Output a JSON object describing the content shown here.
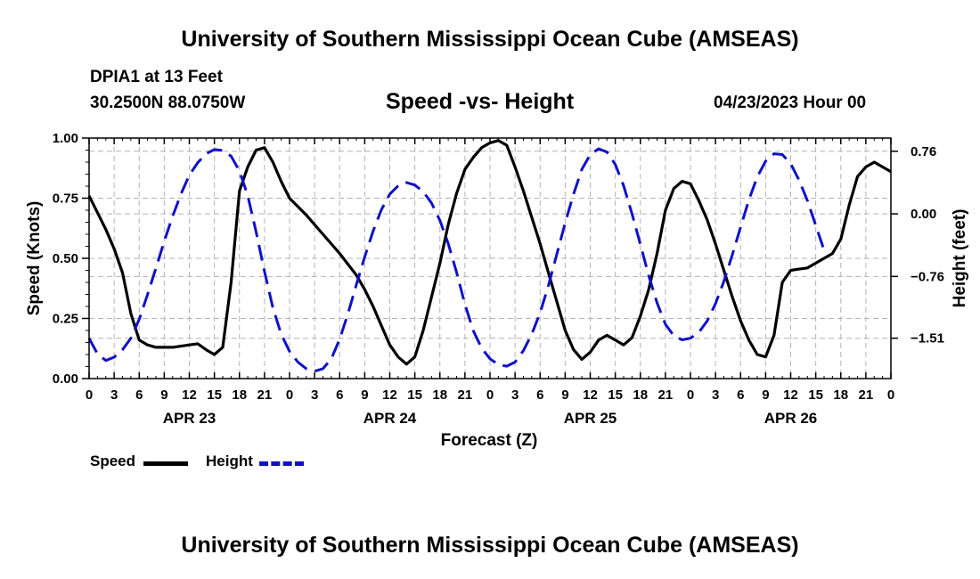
{
  "header": {
    "title": "University of Southern Mississippi Ocean Cube (AMSEAS)",
    "station": "DPIA1 at 13 Feet",
    "coords": "30.2500N  88.0750W",
    "subtitle": "Speed -vs- Height",
    "datetime": "04/23/2023 Hour 00"
  },
  "footer": {
    "title": "University of Southern Mississippi Ocean Cube (AMSEAS)"
  },
  "legend": {
    "speed_label": "Speed",
    "height_label": "Height"
  },
  "colors": {
    "speed": "#000000",
    "height": "#1010c8",
    "grid": "#b4b4b4"
  },
  "chart_data": {
    "type": "line",
    "xlabel": "Forecast (Z)",
    "ylabel": "Speed (Knots)",
    "y2label": "Height (feet)",
    "x_hours_range": [
      0,
      96
    ],
    "x_tick_step_hours": 3,
    "x_tick_labels": [
      "0",
      "3",
      "6",
      "9",
      "12",
      "15",
      "18",
      "21",
      "0",
      "3",
      "6",
      "9",
      "12",
      "15",
      "18",
      "21",
      "0",
      "3",
      "6",
      "9",
      "12",
      "15",
      "18",
      "21",
      "0",
      "3",
      "6",
      "9",
      "12",
      "15",
      "18",
      "21",
      "0"
    ],
    "day_labels": [
      {
        "hour": 12,
        "label": "APR 23"
      },
      {
        "hour": 36,
        "label": "APR 24"
      },
      {
        "hour": 60,
        "label": "APR 25"
      },
      {
        "hour": 84,
        "label": "APR 26"
      }
    ],
    "ylim": [
      0,
      1
    ],
    "y_ticks": [
      0,
      0.25,
      0.5,
      0.75,
      1.0
    ],
    "y_tick_labels": [
      "0.00",
      "0.25",
      "0.50",
      "0.75",
      "1.00"
    ],
    "y2lim": [
      -2.0,
      0.92
    ],
    "y2_ticks": [
      0.76,
      0.0,
      -0.76,
      -1.51
    ],
    "y2_tick_labels": [
      "0.76",
      "0.00",
      "−0.76",
      "−1.51"
    ],
    "series": [
      {
        "name": "Speed",
        "axis": "left",
        "style": "solid",
        "points": [
          [
            0,
            0.76
          ],
          [
            2,
            0.62
          ],
          [
            3,
            0.54
          ],
          [
            4,
            0.44
          ],
          [
            5,
            0.27
          ],
          [
            6,
            0.16
          ],
          [
            7,
            0.14
          ],
          [
            8,
            0.13
          ],
          [
            10,
            0.13
          ],
          [
            12,
            0.14
          ],
          [
            13,
            0.145
          ],
          [
            14,
            0.12
          ],
          [
            15,
            0.1
          ],
          [
            16,
            0.13
          ],
          [
            17,
            0.4
          ],
          [
            18,
            0.78
          ],
          [
            19,
            0.88
          ],
          [
            20,
            0.95
          ],
          [
            21,
            0.96
          ],
          [
            22,
            0.9
          ],
          [
            23,
            0.82
          ],
          [
            24,
            0.75
          ],
          [
            26,
            0.68
          ],
          [
            28,
            0.6
          ],
          [
            30,
            0.52
          ],
          [
            32,
            0.43
          ],
          [
            33,
            0.37
          ],
          [
            34,
            0.3
          ],
          [
            35,
            0.22
          ],
          [
            36,
            0.14
          ],
          [
            37,
            0.09
          ],
          [
            38,
            0.06
          ],
          [
            39,
            0.09
          ],
          [
            40,
            0.2
          ],
          [
            41,
            0.34
          ],
          [
            42,
            0.48
          ],
          [
            43,
            0.64
          ],
          [
            44,
            0.77
          ],
          [
            45,
            0.87
          ],
          [
            46,
            0.92
          ],
          [
            47,
            0.96
          ],
          [
            48,
            0.98
          ],
          [
            49,
            0.99
          ],
          [
            50,
            0.97
          ],
          [
            51,
            0.88
          ],
          [
            52,
            0.78
          ],
          [
            53,
            0.67
          ],
          [
            54,
            0.56
          ],
          [
            55,
            0.44
          ],
          [
            56,
            0.32
          ],
          [
            57,
            0.2
          ],
          [
            58,
            0.12
          ],
          [
            59,
            0.08
          ],
          [
            60,
            0.11
          ],
          [
            61,
            0.16
          ],
          [
            62,
            0.18
          ],
          [
            63,
            0.16
          ],
          [
            64,
            0.14
          ],
          [
            65,
            0.17
          ],
          [
            66,
            0.26
          ],
          [
            67,
            0.37
          ],
          [
            68,
            0.52
          ],
          [
            69,
            0.7
          ],
          [
            70,
            0.79
          ],
          [
            71,
            0.82
          ],
          [
            72,
            0.81
          ],
          [
            73,
            0.74
          ],
          [
            74,
            0.66
          ],
          [
            75,
            0.56
          ],
          [
            76,
            0.45
          ],
          [
            77,
            0.34
          ],
          [
            78,
            0.24
          ],
          [
            79,
            0.16
          ],
          [
            80,
            0.1
          ],
          [
            81,
            0.09
          ],
          [
            82,
            0.18
          ],
          [
            83,
            0.4
          ],
          [
            84,
            0.45
          ],
          [
            85,
            0.455
          ],
          [
            86,
            0.46
          ],
          [
            87,
            0.48
          ],
          [
            88,
            0.5
          ],
          [
            89,
            0.52
          ],
          [
            90,
            0.58
          ],
          [
            91,
            0.72
          ],
          [
            92,
            0.84
          ],
          [
            93,
            0.88
          ],
          [
            94,
            0.9
          ],
          [
            95,
            0.88
          ],
          [
            96,
            0.86
          ]
        ]
      },
      {
        "name": "Height",
        "axis": "right",
        "style": "dashed",
        "points": [
          [
            0,
            -1.51
          ],
          [
            1,
            -1.7
          ],
          [
            2,
            -1.78
          ],
          [
            3,
            -1.74
          ],
          [
            4,
            -1.65
          ],
          [
            5,
            -1.51
          ],
          [
            6,
            -1.28
          ],
          [
            7,
            -0.98
          ],
          [
            8,
            -0.66
          ],
          [
            9,
            -0.33
          ],
          [
            10,
            -0.03
          ],
          [
            11,
            0.24
          ],
          [
            12,
            0.47
          ],
          [
            13,
            0.62
          ],
          [
            14,
            0.73
          ],
          [
            15,
            0.78
          ],
          [
            16,
            0.77
          ],
          [
            17,
            0.7
          ],
          [
            18,
            0.52
          ],
          [
            19,
            0.22
          ],
          [
            20,
            -0.22
          ],
          [
            21,
            -0.7
          ],
          [
            22,
            -1.14
          ],
          [
            23,
            -1.46
          ],
          [
            24,
            -1.67
          ],
          [
            25,
            -1.8
          ],
          [
            26,
            -1.88
          ],
          [
            27,
            -1.91
          ],
          [
            28,
            -1.88
          ],
          [
            29,
            -1.76
          ],
          [
            30,
            -1.52
          ],
          [
            31,
            -1.21
          ],
          [
            32,
            -0.86
          ],
          [
            33,
            -0.52
          ],
          [
            34,
            -0.21
          ],
          [
            35,
            0.05
          ],
          [
            36,
            0.24
          ],
          [
            37,
            0.34
          ],
          [
            38,
            0.38
          ],
          [
            39,
            0.35
          ],
          [
            40,
            0.27
          ],
          [
            41,
            0.13
          ],
          [
            42,
            -0.08
          ],
          [
            43,
            -0.36
          ],
          [
            44,
            -0.71
          ],
          [
            45,
            -1.1
          ],
          [
            46,
            -1.42
          ],
          [
            47,
            -1.63
          ],
          [
            48,
            -1.76
          ],
          [
            49,
            -1.83
          ],
          [
            50,
            -1.85
          ],
          [
            51,
            -1.8
          ],
          [
            52,
            -1.66
          ],
          [
            53,
            -1.46
          ],
          [
            54,
            -1.2
          ],
          [
            55,
            -0.87
          ],
          [
            56,
            -0.49
          ],
          [
            57,
            -0.11
          ],
          [
            58,
            0.24
          ],
          [
            59,
            0.54
          ],
          [
            60,
            0.72
          ],
          [
            61,
            0.79
          ],
          [
            62,
            0.75
          ],
          [
            63,
            0.6
          ],
          [
            64,
            0.34
          ],
          [
            65,
            0.0
          ],
          [
            66,
            -0.37
          ],
          [
            67,
            -0.75
          ],
          [
            68,
            -1.08
          ],
          [
            69,
            -1.34
          ],
          [
            70,
            -1.48
          ],
          [
            71,
            -1.53
          ],
          [
            72,
            -1.51
          ],
          [
            73,
            -1.44
          ],
          [
            74,
            -1.3
          ],
          [
            75,
            -1.09
          ],
          [
            76,
            -0.82
          ],
          [
            77,
            -0.5
          ],
          [
            78,
            -0.16
          ],
          [
            79,
            0.17
          ],
          [
            80,
            0.45
          ],
          [
            81,
            0.64
          ],
          [
            82,
            0.73
          ],
          [
            83,
            0.72
          ],
          [
            84,
            0.61
          ],
          [
            85,
            0.41
          ],
          [
            86,
            0.16
          ],
          [
            87,
            -0.14
          ],
          [
            88,
            -0.44
          ]
        ]
      }
    ]
  }
}
